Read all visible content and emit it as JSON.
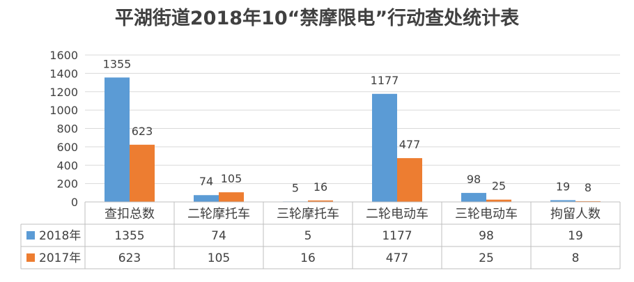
{
  "chart_data": {
    "type": "bar",
    "title": "平湖街道2018年10“禁摩限电”行动查处统计表",
    "categories": [
      "查扣总数",
      "二轮摩托车",
      "三轮摩托车",
      "二轮电动车",
      "三轮电动车",
      "拘留人数"
    ],
    "series": [
      {
        "name": "2018年",
        "color": "#5b9bd5",
        "values": [
          1355,
          74,
          5,
          1177,
          98,
          19
        ]
      },
      {
        "name": "2017年",
        "color": "#ed7d31",
        "values": [
          623,
          105,
          16,
          477,
          25,
          8
        ]
      }
    ],
    "ylim": [
      0,
      1600
    ],
    "yticks": [
      "0",
      "200",
      "400",
      "600",
      "800",
      "1000",
      "1200",
      "1400",
      "1600"
    ],
    "grid": true,
    "legend": "data-table",
    "data_table": true
  }
}
